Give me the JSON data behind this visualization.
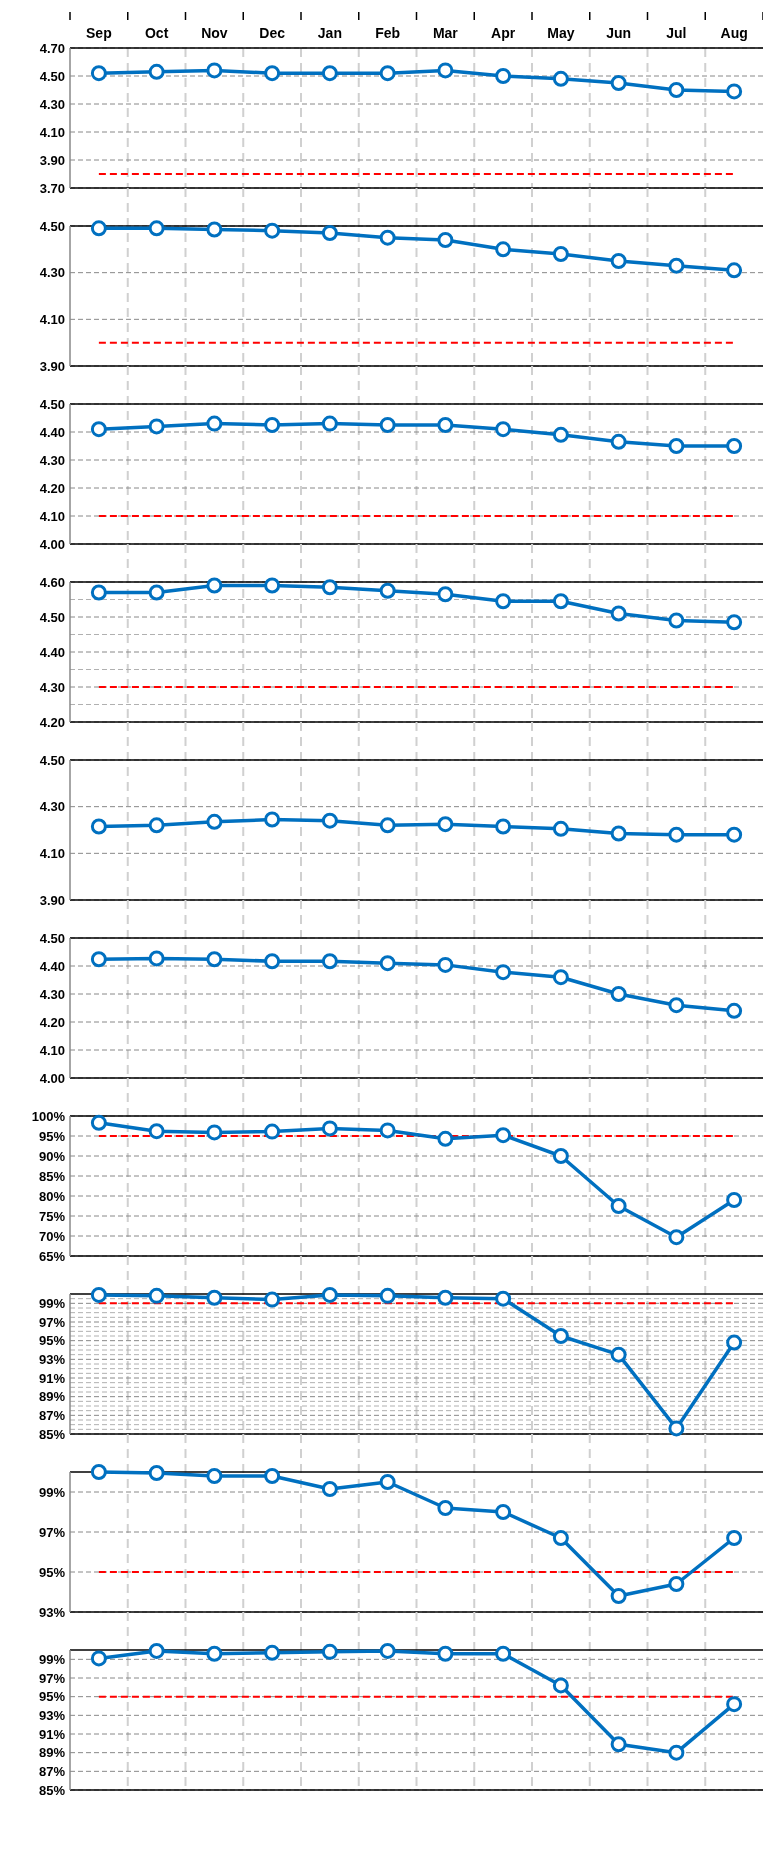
{
  "chart_data": [
    {
      "type": "line",
      "categories": [
        "Sep",
        "Oct",
        "Nov",
        "Dec",
        "Jan",
        "Feb",
        "Mar",
        "Apr",
        "May",
        "Jun",
        "Jul",
        "Aug"
      ],
      "series": [
        {
          "color": "#0070c0",
          "values": [
            4.52,
            4.53,
            4.54,
            4.52,
            4.52,
            4.52,
            4.54,
            4.5,
            4.48,
            4.45,
            4.4,
            4.39
          ]
        }
      ],
      "ylim": [
        3.7,
        4.7
      ],
      "yticks": [
        {
          "value": 3.7,
          "label": "3.70"
        },
        {
          "value": 3.9,
          "label": "3.90"
        },
        {
          "value": 4.1,
          "label": "4.10"
        },
        {
          "value": 4.3,
          "label": "4.30"
        },
        {
          "value": 4.5,
          "label": "4.50"
        },
        {
          "value": 4.7,
          "label": "4.70"
        }
      ],
      "ref_lines": [
        {
          "axis": "y",
          "value": 3.8,
          "color": "#ff0000",
          "line_style": "dashed"
        }
      ],
      "grid": true,
      "marker": "circle"
    },
    {
      "type": "line",
      "categories": [
        null,
        null,
        null,
        null,
        null,
        null,
        null,
        null,
        null,
        null,
        null,
        null
      ],
      "series": [
        {
          "color": "#0070c0",
          "values": [
            4.49,
            4.49,
            4.485,
            4.48,
            4.47,
            4.45,
            4.44,
            4.4,
            4.38,
            4.35,
            4.33,
            4.31
          ]
        }
      ],
      "ylim": [
        3.9,
        4.5
      ],
      "yticks": [
        {
          "value": 3.9,
          "label": "3.90"
        },
        {
          "value": 4.1,
          "label": "4.10"
        },
        {
          "value": 4.3,
          "label": "4.30"
        },
        {
          "value": 4.5,
          "label": "4.50"
        }
      ],
      "ref_lines": [
        {
          "axis": "y",
          "value": 4.0,
          "color": "#ff0000",
          "line_style": "dashed"
        }
      ],
      "grid": true,
      "marker": "circle",
      "tick_labels": "y"
    },
    {
      "type": "line",
      "categories": [
        null,
        null,
        null,
        null,
        null,
        null,
        null,
        null,
        null,
        null,
        null,
        null
      ],
      "series": [
        {
          "color": "#0070c0",
          "values": [
            4.41,
            4.42,
            4.43,
            4.425,
            4.43,
            4.425,
            4.425,
            4.41,
            4.39,
            4.365,
            4.35,
            4.35
          ]
        }
      ],
      "ylim": [
        4.0,
        4.5
      ],
      "yticks": [
        {
          "value": 4.0,
          "label": "4.00"
        },
        {
          "value": 4.1,
          "label": "4.10"
        },
        {
          "value": 4.2,
          "label": "4.20"
        },
        {
          "value": 4.3,
          "label": "4.30"
        },
        {
          "value": 4.4,
          "label": "4.40"
        },
        {
          "value": 4.5,
          "label": "4.50"
        }
      ],
      "ref_lines": [
        {
          "axis": "y",
          "value": 4.1,
          "color": "#ff0000",
          "line_style": "dashed"
        }
      ],
      "grid": true,
      "marker": "circle",
      "tick_labels": "y"
    },
    {
      "type": "line",
      "categories": [
        null,
        null,
        null,
        null,
        null,
        null,
        null,
        null,
        null,
        null,
        null,
        null
      ],
      "series": [
        {
          "color": "#0070c0",
          "values": [
            4.57,
            4.57,
            4.59,
            4.59,
            4.585,
            4.575,
            4.565,
            4.545,
            4.545,
            4.51,
            4.49,
            4.485
          ]
        }
      ],
      "ylim": [
        4.2,
        4.6
      ],
      "yticks": [
        {
          "value": 4.2,
          "label": "4.20"
        },
        {
          "value": 4.25,
          "label": null
        },
        {
          "value": 4.3,
          "label": "4.30"
        },
        {
          "value": 4.35,
          "label": null
        },
        {
          "value": 4.4,
          "label": "4.40"
        },
        {
          "value": 4.45,
          "label": null
        },
        {
          "value": 4.5,
          "label": "4.50"
        },
        {
          "value": 4.55,
          "label": null
        },
        {
          "value": 4.6,
          "label": "4.60"
        }
      ],
      "ref_lines": [
        {
          "axis": "y",
          "value": 4.3,
          "color": "#ff0000",
          "line_style": "dashed"
        }
      ],
      "grid": true,
      "marker": "circle",
      "tick_labels": "y"
    },
    {
      "type": "line",
      "categories": [
        null,
        null,
        null,
        null,
        null,
        null,
        null,
        null,
        null,
        null,
        null,
        null
      ],
      "series": [
        {
          "color": "#0070c0",
          "values": [
            4.215,
            4.22,
            4.235,
            4.245,
            4.24,
            4.22,
            4.225,
            4.215,
            4.205,
            4.185,
            4.18,
            4.18
          ]
        }
      ],
      "ylim": [
        3.9,
        4.5
      ],
      "yticks": [
        {
          "value": 3.9,
          "label": "3.90"
        },
        {
          "value": 4.1,
          "label": "4.10"
        },
        {
          "value": 4.3,
          "label": "4.30"
        },
        {
          "value": 4.5,
          "label": "4.50"
        }
      ],
      "grid": true,
      "marker": "circle",
      "tick_labels": "y"
    },
    {
      "type": "line",
      "categories": [
        null,
        null,
        null,
        null,
        null,
        null,
        null,
        null,
        null,
        null,
        null,
        null
      ],
      "series": [
        {
          "color": "#0070c0",
          "values": [
            4.424,
            4.427,
            4.424,
            4.417,
            4.417,
            4.41,
            4.404,
            4.378,
            4.36,
            4.3,
            4.26,
            4.24
          ]
        }
      ],
      "ylim": [
        4.0,
        4.5
      ],
      "yticks": [
        {
          "value": 4.0,
          "label": "4.00"
        },
        {
          "value": 4.1,
          "label": "4.10"
        },
        {
          "value": 4.2,
          "label": "4.20"
        },
        {
          "value": 4.3,
          "label": "4.30"
        },
        {
          "value": 4.4,
          "label": "4.40"
        },
        {
          "value": 4.5,
          "label": "4.50"
        }
      ],
      "grid": true,
      "marker": "circle",
      "tick_labels": "y"
    },
    {
      "type": "line",
      "categories": [
        null,
        null,
        null,
        null,
        null,
        null,
        null,
        null,
        null,
        null,
        null,
        null
      ],
      "series": [
        {
          "color": "#0070c0",
          "values": [
            98.3,
            96.2,
            95.9,
            96.1,
            96.9,
            96.4,
            94.3,
            95.2,
            90.0,
            77.5,
            69.7,
            79.0
          ]
        }
      ],
      "ylim": [
        65,
        100
      ],
      "yticks": [
        {
          "value": 65,
          "label": "65%"
        },
        {
          "value": 70,
          "label": "70%"
        },
        {
          "value": 75,
          "label": "75%"
        },
        {
          "value": 80,
          "label": "80%"
        },
        {
          "value": 85,
          "label": "85%"
        },
        {
          "value": 90,
          "label": "90%"
        },
        {
          "value": 95,
          "label": "95%"
        },
        {
          "value": 100,
          "label": "100%"
        }
      ],
      "ref_lines": [
        {
          "axis": "y",
          "value": 95,
          "color": "#ff0000",
          "line_style": "dashed"
        }
      ],
      "grid": true,
      "marker": "circle",
      "tick_labels": "y"
    },
    {
      "type": "line",
      "categories": [
        null,
        null,
        null,
        null,
        null,
        null,
        null,
        null,
        null,
        null,
        null,
        null
      ],
      "series": [
        {
          "color": "#0070c0",
          "values": [
            99.9,
            99.8,
            99.6,
            99.4,
            99.9,
            99.8,
            99.6,
            99.5,
            95.5,
            93.5,
            85.6,
            94.8
          ]
        }
      ],
      "ylim": [
        85,
        100
      ],
      "yticks": [
        {
          "value": 85,
          "label": "85%"
        },
        {
          "value": 85.5,
          "label": null
        },
        {
          "value": 86,
          "label": null
        },
        {
          "value": 86.5,
          "label": null
        },
        {
          "value": 87,
          "label": "87%"
        },
        {
          "value": 87.5,
          "label": null
        },
        {
          "value": 88,
          "label": null
        },
        {
          "value": 88.5,
          "label": null
        },
        {
          "value": 89,
          "label": "89%"
        },
        {
          "value": 89.5,
          "label": null
        },
        {
          "value": 90,
          "label": null
        },
        {
          "value": 90.5,
          "label": null
        },
        {
          "value": 91,
          "label": "91%"
        },
        {
          "value": 91.5,
          "label": null
        },
        {
          "value": 92,
          "label": null
        },
        {
          "value": 92.5,
          "label": null
        },
        {
          "value": 93,
          "label": "93%"
        },
        {
          "value": 93.5,
          "label": null
        },
        {
          "value": 94,
          "label": null
        },
        {
          "value": 94.5,
          "label": null
        },
        {
          "value": 95,
          "label": "95%"
        },
        {
          "value": 95.5,
          "label": null
        },
        {
          "value": 96,
          "label": null
        },
        {
          "value": 96.5,
          "label": null
        },
        {
          "value": 97,
          "label": "97%"
        },
        {
          "value": 97.5,
          "label": null
        },
        {
          "value": 98,
          "label": null
        },
        {
          "value": 98.5,
          "label": null
        },
        {
          "value": 99,
          "label": "99%"
        },
        {
          "value": 99.5,
          "label": null
        }
      ],
      "ref_lines": [
        {
          "axis": "y",
          "value": 99,
          "color": "#ff0000",
          "line_style": "dashed"
        }
      ],
      "grid": true,
      "marker": "circle",
      "tick_labels": "y"
    },
    {
      "type": "line",
      "categories": [
        null,
        null,
        null,
        null,
        null,
        null,
        null,
        null,
        null,
        null,
        null,
        null
      ],
      "series": [
        {
          "color": "#0070c0",
          "values": [
            100,
            99.95,
            99.8,
            99.8,
            99.15,
            99.5,
            98.2,
            98.0,
            96.7,
            93.8,
            94.4,
            96.7
          ]
        }
      ],
      "ylim": [
        93,
        100
      ],
      "yticks": [
        {
          "value": 93,
          "label": "93%"
        },
        {
          "value": 95,
          "label": "95%"
        },
        {
          "value": 97,
          "label": "97%"
        },
        {
          "value": 99,
          "label": "99%"
        }
      ],
      "ref_lines": [
        {
          "axis": "y",
          "value": 95,
          "color": "#ff0000",
          "line_style": "dashed"
        }
      ],
      "grid": true,
      "marker": "circle",
      "tick_labels": "y"
    },
    {
      "type": "line",
      "categories": [
        null,
        null,
        null,
        null,
        null,
        null,
        null,
        null,
        null,
        null,
        null,
        null
      ],
      "series": [
        {
          "color": "#0070c0",
          "values": [
            99.1,
            99.9,
            99.6,
            99.7,
            99.8,
            99.9,
            99.6,
            99.6,
            96.2,
            89.9,
            89.0,
            94.2
          ]
        }
      ],
      "ylim": [
        85,
        100
      ],
      "yticks": [
        {
          "value": 85,
          "label": "85%"
        },
        {
          "value": 87,
          "label": "87%"
        },
        {
          "value": 89,
          "label": "89%"
        },
        {
          "value": 91,
          "label": "91%"
        },
        {
          "value": 93,
          "label": "93%"
        },
        {
          "value": 95,
          "label": "95%"
        },
        {
          "value": 97,
          "label": "97%"
        },
        {
          "value": 99,
          "label": "99%"
        }
      ],
      "ref_lines": [
        {
          "axis": "y",
          "value": 95,
          "color": "#ff0000",
          "line_style": "dashed"
        }
      ],
      "grid": true,
      "marker": "circle",
      "tick_labels": "y"
    }
  ]
}
